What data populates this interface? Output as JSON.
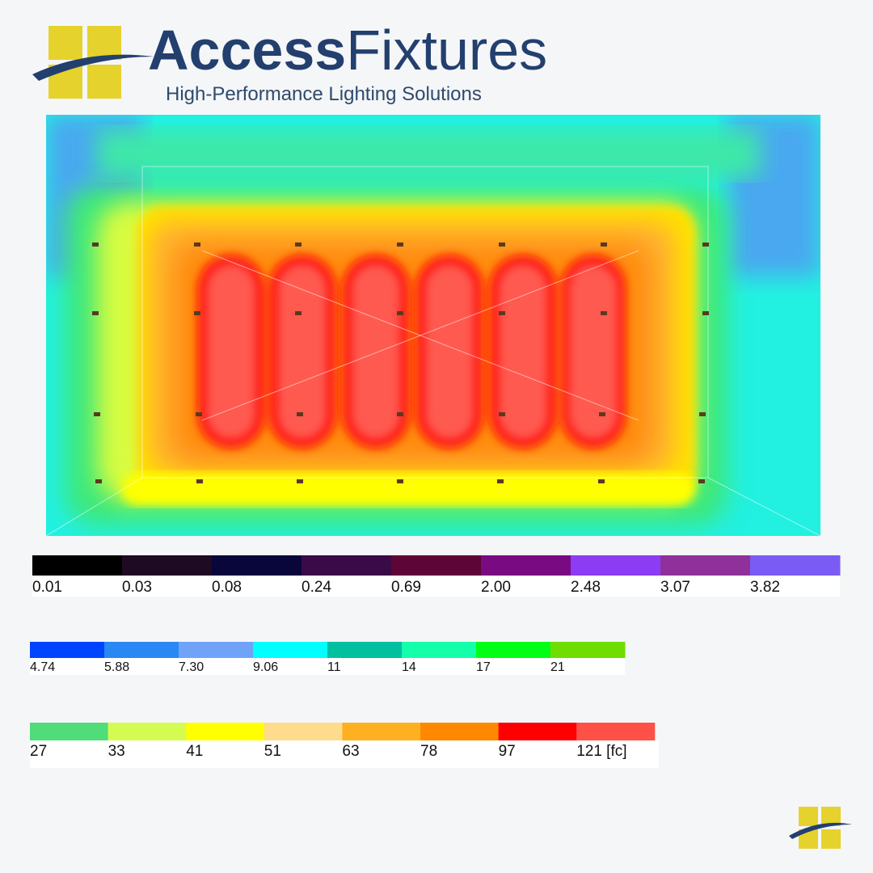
{
  "brand": {
    "name_part1": "Access",
    "name_part2": "Fixtures",
    "tagline": "High-Performance Lighting Solutions"
  },
  "legend": {
    "rows": [
      {
        "swatches": [
          {
            "color": "#000000",
            "label": "0.01"
          },
          {
            "color": "#1e0a22",
            "label": "0.03"
          },
          {
            "color": "#08063a",
            "label": "0.08"
          },
          {
            "color": "#3a0a48",
            "label": "0.24"
          },
          {
            "color": "#5e0538",
            "label": "0.69"
          },
          {
            "color": "#7a0a82",
            "label": "2.00"
          },
          {
            "color": "#8c3cf2",
            "label": "2.48"
          },
          {
            "color": "#90309a",
            "label": "3.07"
          },
          {
            "color": "#7a5cf5",
            "label": "3.82"
          }
        ]
      },
      {
        "swatches": [
          {
            "color": "#0044ff",
            "label": "4.74"
          },
          {
            "color": "#2a88f2",
            "label": "5.88"
          },
          {
            "color": "#70a2f8",
            "label": "7.30"
          },
          {
            "color": "#00ffff",
            "label": "9.06"
          },
          {
            "color": "#00c0a0",
            "label": "11"
          },
          {
            "color": "#14ffaa",
            "label": "14"
          },
          {
            "color": "#00ff14",
            "label": "17"
          },
          {
            "color": "#70dd00",
            "label": "21"
          }
        ]
      },
      {
        "swatches": [
          {
            "color": "#50dc78",
            "label": "27"
          },
          {
            "color": "#d4fc50",
            "label": "33"
          },
          {
            "color": "#ffff00",
            "label": "41"
          },
          {
            "color": "#ffdc8c",
            "label": "51"
          },
          {
            "color": "#ffb020",
            "label": "63"
          },
          {
            "color": "#ff8800",
            "label": "78"
          },
          {
            "color": "#ff0000",
            "label": "97"
          },
          {
            "color": "#ff5048",
            "label": "121 [fc]"
          }
        ]
      }
    ]
  }
}
